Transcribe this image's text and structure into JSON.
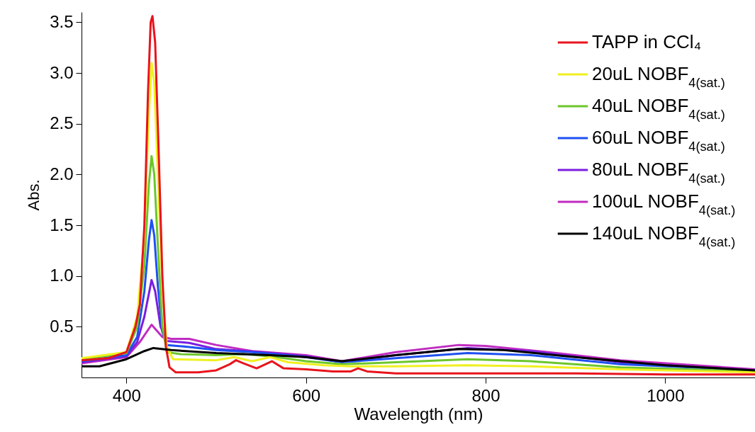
{
  "chart_data": {
    "type": "line",
    "xlabel": "Wavelength (nm)",
    "ylabel": "Abs.",
    "xlim": [
      350,
      1100
    ],
    "xticks": [
      400,
      600,
      800,
      1000
    ],
    "ylim": [
      0,
      3.6
    ],
    "yticks": [
      0.5,
      {
        "value": 1,
        "label": "1.0"
      },
      1.5,
      {
        "value": 2,
        "label": "2.0"
      },
      2.5,
      {
        "value": 3,
        "label": "3.0"
      },
      3.5
    ],
    "legend": "top right",
    "series": [
      {
        "name": "TAPP in CCl₄",
        "color": "#e8141c",
        "x": [
          350,
          380,
          400,
          410,
          415,
          420,
          424,
          427,
          429,
          432,
          436,
          440,
          444,
          448,
          455,
          480,
          500,
          515,
          522,
          530,
          545,
          562,
          575,
          600,
          630,
          650,
          658,
          668,
          700,
          800,
          900,
          1000,
          1100
        ],
        "values": [
          0.17,
          0.19,
          0.25,
          0.5,
          0.72,
          1.5,
          2.8,
          3.5,
          3.56,
          3.3,
          2.2,
          1.0,
          0.3,
          0.1,
          0.05,
          0.05,
          0.07,
          0.13,
          0.17,
          0.14,
          0.09,
          0.16,
          0.09,
          0.08,
          0.06,
          0.06,
          0.09,
          0.06,
          0.04,
          0.04,
          0.04,
          0.03,
          0.03
        ]
      },
      {
        "name": "20uL NOBF$_{4(sat.)}$",
        "color": "#f0f020",
        "x": [
          350,
          400,
          412,
          420,
          425,
          428,
          431,
          435,
          440,
          445,
          452,
          500,
          520,
          540,
          560,
          580,
          620,
          650,
          700,
          780,
          850,
          950,
          1100
        ],
        "values": [
          0.19,
          0.25,
          0.6,
          1.4,
          2.6,
          3.1,
          2.9,
          2.0,
          0.9,
          0.3,
          0.18,
          0.17,
          0.2,
          0.16,
          0.2,
          0.15,
          0.12,
          0.11,
          0.11,
          0.12,
          0.11,
          0.08,
          0.05
        ]
      },
      {
        "name": "40uL NOBF$_{4(sat.)}$",
        "color": "#6cc62c",
        "x": [
          350,
          400,
          412,
          420,
          425,
          428,
          431,
          435,
          440,
          445,
          460,
          500,
          530,
          560,
          600,
          640,
          700,
          780,
          850,
          950,
          1100
        ],
        "values": [
          0.18,
          0.24,
          0.5,
          1.1,
          1.9,
          2.18,
          2.0,
          1.3,
          0.5,
          0.25,
          0.23,
          0.22,
          0.23,
          0.21,
          0.16,
          0.13,
          0.15,
          0.18,
          0.16,
          0.1,
          0.06
        ]
      },
      {
        "name": "60uL NOBF$_{4(sat.)}$",
        "color": "#1e50f0",
        "x": [
          350,
          400,
          412,
          420,
          425,
          428,
          431,
          435,
          440,
          445,
          470,
          500,
          540,
          600,
          640,
          700,
          780,
          850,
          950,
          1100
        ],
        "values": [
          0.16,
          0.22,
          0.4,
          0.85,
          1.35,
          1.55,
          1.4,
          0.9,
          0.45,
          0.32,
          0.3,
          0.27,
          0.25,
          0.2,
          0.15,
          0.19,
          0.24,
          0.22,
          0.13,
          0.07
        ]
      },
      {
        "name": "80uL NOBF$_{4(sat.)}$",
        "color": "#7a1ee0",
        "x": [
          350,
          400,
          412,
          420,
          428,
          432,
          438,
          445,
          470,
          500,
          550,
          600,
          640,
          700,
          780,
          850,
          950,
          1100
        ],
        "values": [
          0.15,
          0.21,
          0.35,
          0.6,
          0.96,
          0.85,
          0.5,
          0.36,
          0.34,
          0.28,
          0.25,
          0.21,
          0.15,
          0.22,
          0.29,
          0.26,
          0.15,
          0.07
        ]
      },
      {
        "name": "100uL NOBF$_{4(sat.)}$",
        "color": "#c02cc0",
        "x": [
          350,
          400,
          415,
          428,
          440,
          450,
          470,
          500,
          540,
          600,
          640,
          700,
          770,
          800,
          870,
          950,
          1100
        ],
        "values": [
          0.14,
          0.2,
          0.35,
          0.52,
          0.4,
          0.38,
          0.38,
          0.32,
          0.26,
          0.22,
          0.16,
          0.25,
          0.32,
          0.31,
          0.25,
          0.17,
          0.08
        ]
      },
      {
        "name": "140uL NOBF$_{4(sat.)}$",
        "color": "#000000",
        "x": [
          350,
          370,
          400,
          420,
          430,
          450,
          500,
          560,
          600,
          640,
          700,
          770,
          820,
          900,
          1000,
          1100
        ],
        "values": [
          0.11,
          0.11,
          0.18,
          0.26,
          0.29,
          0.27,
          0.24,
          0.22,
          0.2,
          0.16,
          0.22,
          0.28,
          0.27,
          0.2,
          0.12,
          0.07
        ]
      }
    ]
  }
}
